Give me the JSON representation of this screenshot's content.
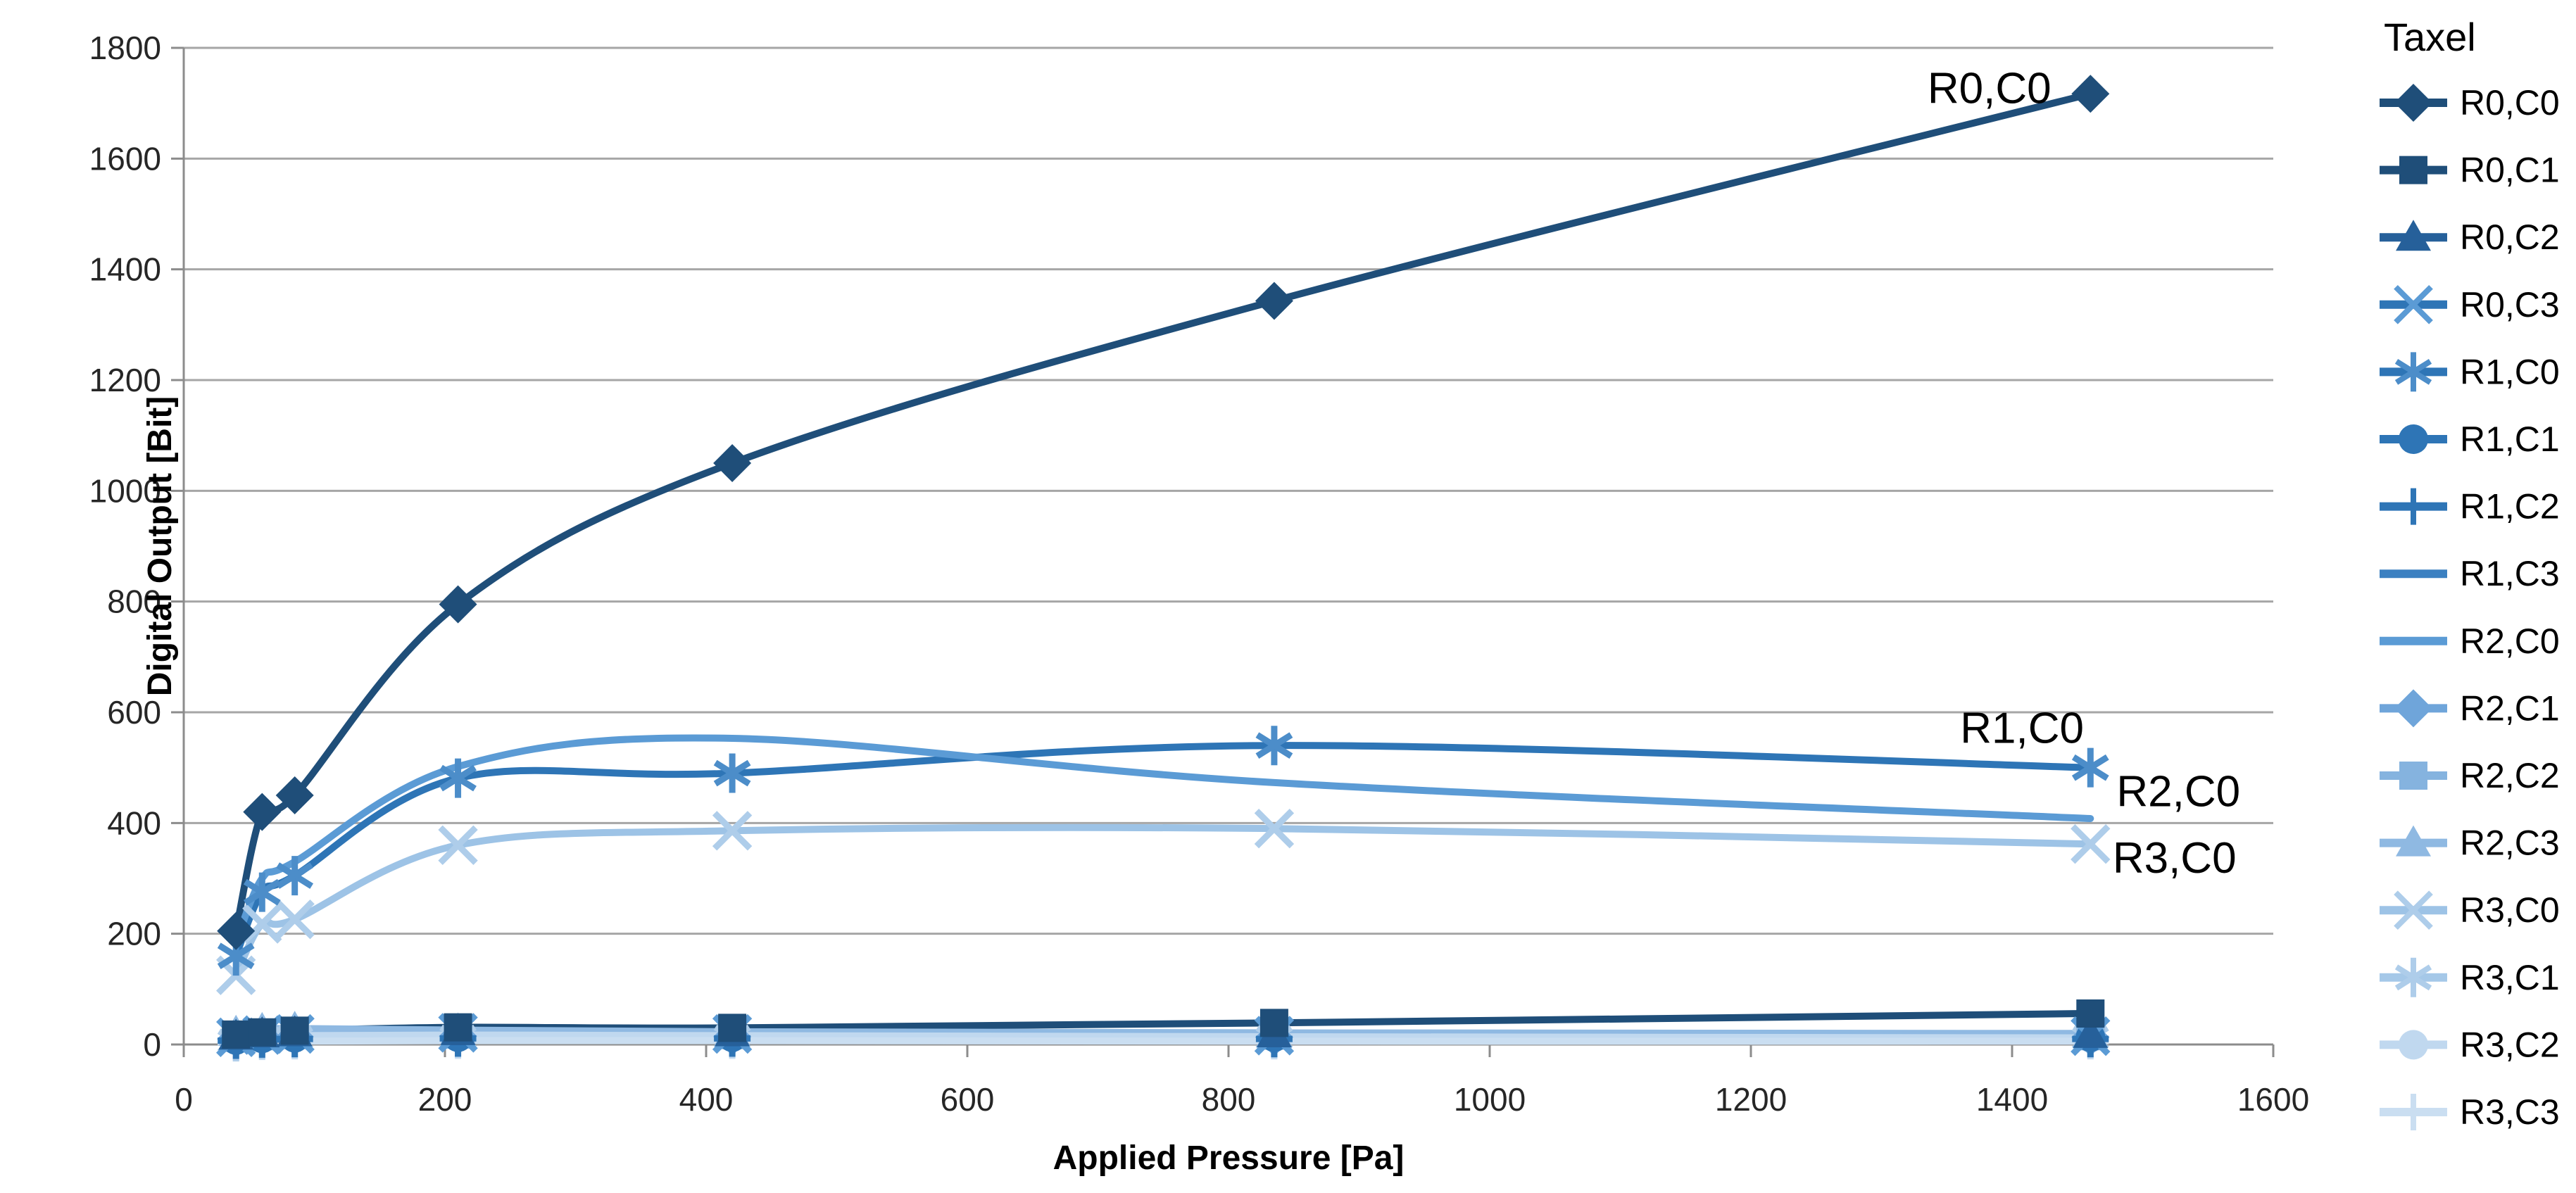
{
  "page": {
    "background": "#ffffff"
  },
  "chart_data": {
    "type": "line",
    "title": "",
    "xlabel": "Applied Pressure [Pa]",
    "ylabel": "Digital Output [Bit]",
    "legend_title": "Taxel",
    "legend_position": "right",
    "grid": true,
    "xlim": [
      0,
      1600
    ],
    "ylim": [
      0,
      1800
    ],
    "xticks": [
      0,
      200,
      400,
      600,
      800,
      1000,
      1200,
      1400,
      1600
    ],
    "yticks": [
      0,
      200,
      400,
      600,
      800,
      1000,
      1200,
      1400,
      1600,
      1800
    ],
    "x": [
      40,
      60,
      85,
      210,
      420,
      835,
      1460
    ],
    "series": [
      {
        "name": "R0,C0",
        "marker": "diamond",
        "color": "#1F4E79",
        "values": [
          205,
          420,
          450,
          795,
          1050,
          1343,
          1717
        ]
      },
      {
        "name": "R0,C1",
        "marker": "square",
        "color": "#1F4E79",
        "values": [
          18,
          22,
          25,
          31,
          30,
          39,
          56
        ]
      },
      {
        "name": "R0,C2",
        "marker": "triangle",
        "color": "#26609A",
        "values": [
          15,
          19,
          21,
          23,
          21,
          19,
          18
        ]
      },
      {
        "name": "R0,C3",
        "marker": "x",
        "color": "#2E75B6",
        "marker_color": "#5B9BD5",
        "values": [
          13,
          17,
          19,
          21,
          19,
          16,
          15
        ]
      },
      {
        "name": "R1,C0",
        "marker": "asterisk",
        "color": "#2E75B6",
        "marker_color": "#4C8DC9",
        "values": [
          160,
          275,
          305,
          481,
          490,
          540,
          500
        ]
      },
      {
        "name": "R1,C1",
        "marker": "circle",
        "color": "#2E75B6",
        "values": [
          8,
          11,
          12,
          13,
          13,
          13,
          13
        ]
      },
      {
        "name": "R1,C2",
        "marker": "plus",
        "color": "#2E75B6",
        "values": [
          7,
          9,
          10,
          11,
          11,
          10,
          10
        ]
      },
      {
        "name": "R1,C3",
        "marker": "none",
        "color": "#3B80C1",
        "values": [
          6,
          8,
          9,
          10,
          9,
          9,
          9
        ]
      },
      {
        "name": "R2,C0",
        "marker": "none",
        "color": "#5B9BD5",
        "values": [
          185,
          300,
          330,
          502,
          553,
          473,
          408
        ]
      },
      {
        "name": "R2,C1",
        "marker": "diamond",
        "color": "#6FA5DA",
        "values": [
          10,
          13,
          14,
          15,
          14,
          13,
          13
        ]
      },
      {
        "name": "R2,C2",
        "marker": "square",
        "color": "#85B3DF",
        "values": [
          12,
          15,
          17,
          18,
          17,
          16,
          15
        ]
      },
      {
        "name": "R2,C3",
        "marker": "triangle",
        "color": "#8FB9E2",
        "values": [
          22,
          27,
          29,
          26,
          23,
          21,
          20
        ]
      },
      {
        "name": "R3,C0",
        "marker": "x",
        "color": "#9DC3E6",
        "marker_color": "#AECDEA",
        "values": [
          125,
          218,
          226,
          360,
          386,
          390,
          362
        ]
      },
      {
        "name": "R3,C1",
        "marker": "asterisk",
        "color": "#A5C8E8",
        "marker_color": "#AECDEA",
        "values": [
          5,
          9,
          11,
          12,
          12,
          11,
          11
        ]
      },
      {
        "name": "R3,C2",
        "marker": "circle",
        "color": "#C0D8EF",
        "values": [
          10,
          14,
          16,
          17,
          16,
          14,
          12
        ]
      },
      {
        "name": "R3,C3",
        "marker": "plus",
        "color": "#CADEF1",
        "values": [
          3,
          5,
          6,
          7,
          7,
          6,
          6
        ]
      }
    ],
    "annotations": [
      {
        "text": "R0,C0",
        "x": 1430,
        "y": 1700,
        "anchor": "end"
      },
      {
        "text": "R1,C0",
        "x": 1455,
        "y": 545,
        "anchor": "end"
      },
      {
        "text": "R2,C0",
        "x": 1480,
        "y": 430,
        "anchor": "start"
      },
      {
        "text": "R3,C0",
        "x": 1477,
        "y": 310,
        "anchor": "start"
      }
    ],
    "colors": {
      "grid": "#A6A6A6",
      "axis": "#8C8C8C",
      "tick_text": "#262626",
      "annotation_text": "#000000"
    }
  }
}
